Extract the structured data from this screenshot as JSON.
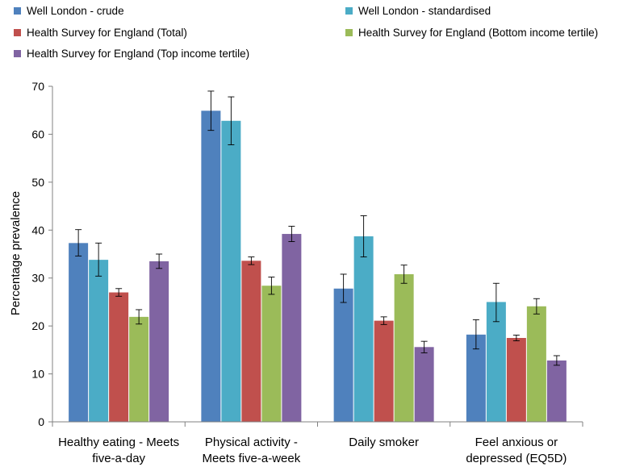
{
  "chart_data": {
    "type": "bar",
    "ylabel": "Percentage prevalence",
    "ylim": [
      0,
      70
    ],
    "yticks": [
      0,
      10,
      20,
      30,
      40,
      50,
      60,
      70
    ],
    "grid": false,
    "legend_position": "top",
    "categories": [
      [
        "Healthy eating - Meets",
        "five-a-day"
      ],
      [
        "Physical activity -",
        "Meets five-a-week"
      ],
      [
        "Daily smoker"
      ],
      [
        "Feel anxious or",
        "depressed (EQ5D)"
      ]
    ],
    "series": [
      {
        "name": "Well London - crude",
        "color": "#4F81BD",
        "values": [
          37.3,
          64.9,
          27.8,
          18.2
        ],
        "error_low": [
          34.6,
          60.8,
          24.9,
          15.2
        ],
        "error_high": [
          40.1,
          69.0,
          30.8,
          21.3
        ]
      },
      {
        "name": "Well London - standardised",
        "color": "#4BACC6",
        "values": [
          33.8,
          62.8,
          38.7,
          25.0
        ],
        "error_low": [
          30.4,
          57.8,
          34.4,
          20.9
        ],
        "error_high": [
          37.3,
          67.8,
          43.0,
          28.9
        ]
      },
      {
        "name": "Health Survey for England (Total)",
        "color": "#C0504D",
        "values": [
          27.0,
          33.6,
          21.1,
          17.5
        ],
        "error_low": [
          26.2,
          32.8,
          20.3,
          16.9
        ],
        "error_high": [
          27.8,
          34.4,
          21.9,
          18.1
        ]
      },
      {
        "name": "Health Survey for England (Bottom income tertile)",
        "color": "#9BBB59",
        "values": [
          21.9,
          28.4,
          30.8,
          24.1
        ],
        "error_low": [
          20.4,
          26.6,
          28.9,
          22.5
        ],
        "error_high": [
          23.4,
          30.2,
          32.7,
          25.7
        ]
      },
      {
        "name": "Health Survey for England (Top income tertile)",
        "color": "#8064A2",
        "values": [
          33.5,
          39.2,
          15.6,
          12.8
        ],
        "error_low": [
          32.0,
          37.6,
          14.4,
          11.8
        ],
        "error_high": [
          35.0,
          40.8,
          16.8,
          13.8
        ]
      }
    ]
  }
}
